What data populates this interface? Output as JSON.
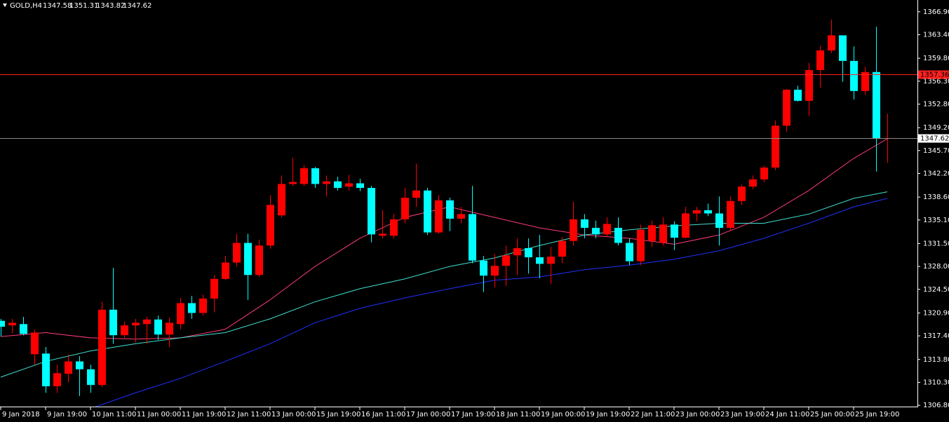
{
  "chart_data": {
    "type": "candlestick",
    "symbol": "GOLD,H4",
    "up_color": "#ff0000",
    "down_color": "#00ffff",
    "categories": [
      "9 Jan 2018",
      null,
      null,
      null,
      "9 Jan 19:00",
      null,
      null,
      null,
      "10 Jan 11:00",
      null,
      null,
      null,
      "11 Jan 00:00",
      null,
      null,
      null,
      "11 Jan 19:00",
      null,
      null,
      null,
      "12 Jan 11:00",
      null,
      null,
      null,
      "13 Jan 00:00",
      null,
      null,
      null,
      "15 Jan 19:00",
      null,
      null,
      null,
      "16 Jan 11:00",
      null,
      null,
      null,
      "17 Jan 00:00",
      null,
      null,
      null,
      "17 Jan 19:00",
      null,
      null,
      null,
      "18 Jan 11:00",
      null,
      null,
      null,
      "19 Jan 00:00",
      null,
      null,
      null,
      "19 Jan 19:00",
      null,
      null,
      null,
      "22 Jan 11:00",
      null,
      null,
      null,
      "23 Jan 00:00",
      null,
      null,
      null,
      "23 Jan 19:00",
      null,
      null,
      null,
      "24 Jan 11:00",
      null,
      null,
      null,
      "25 Jan 00:00",
      null,
      null,
      null,
      "25 Jan 19:00",
      null,
      null,
      null
    ],
    "open": [
      1319.7,
      1319.0,
      1319.2,
      1314.6,
      1314.7,
      1309.7,
      1311.6,
      1313.5,
      1312.3,
      1309.9,
      1321.4,
      1317.5,
      1319.0,
      1319.2,
      1319.9,
      1317.6,
      1319.2,
      1322.4,
      1320.9,
      1323.1,
      1326.1,
      1328.6,
      1331.6,
      1326.7,
      1331.2,
      1335.8,
      1340.6,
      1340.6,
      1343.0,
      1340.6,
      1341.0,
      1340.2,
      1340.7,
      1340.0,
      1332.7,
      1332.7,
      1335.2,
      1338.5,
      1339.6,
      1333.2,
      1338.1,
      1335.3,
      1336.0,
      1328.9,
      1326.6,
      1328.1,
      1329.7,
      1330.8,
      1329.4,
      1328.4,
      1329.5,
      1331.9,
      1335.2,
      1333.9,
      1332.9,
      1333.9,
      1331.6,
      1328.8,
      1331.9,
      1331.6,
      1334.4,
      1332.4,
      1336.1,
      1336.6,
      1336.1,
      1333.9,
      1338.0,
      1340.2,
      1341.3,
      1343.1,
      1349.5,
      1355.0,
      1353.3,
      1358.0,
      1361.0,
      1363.3,
      1359.4,
      1354.8,
      1357.7,
      1347.58
    ],
    "high": [
      1320.0,
      1320.0,
      1320.3,
      1318.4,
      1315.7,
      1313.0,
      1314.6,
      1314.3,
      1313.0,
      1322.6,
      1327.8,
      1319.6,
      1320.0,
      1320.3,
      1320.5,
      1320.2,
      1323.2,
      1323.5,
      1323.7,
      1326.7,
      1329.6,
      1333.0,
      1333.0,
      1332.1,
      1338.9,
      1341.9,
      1344.6,
      1343.5,
      1343.2,
      1341.9,
      1341.7,
      1342.0,
      1341.4,
      1340.3,
      1336.6,
      1336.0,
      1340.0,
      1343.7,
      1340.0,
      1338.9,
      1338.5,
      1337.1,
      1340.3,
      1329.6,
      1329.9,
      1331.2,
      1332.3,
      1332.3,
      1332.8,
      1331.0,
      1332.5,
      1337.9,
      1336.0,
      1335.0,
      1335.5,
      1335.5,
      1332.3,
      1334.4,
      1335.0,
      1335.5,
      1334.9,
      1337.1,
      1337.1,
      1337.6,
      1338.7,
      1338.7,
      1340.5,
      1341.9,
      1343.4,
      1350.3,
      1355.1,
      1355.6,
      1359.1,
      1361.7,
      1365.7,
      1363.3,
      1361.6,
      1358.5,
      1364.6,
      1351.31
    ],
    "low": [
      1317.3,
      1317.8,
      1317.5,
      1313.0,
      1308.7,
      1308.7,
      1310.3,
      1308.2,
      1308.7,
      1309.6,
      1316.2,
      1317.1,
      1316.4,
      1316.2,
      1316.8,
      1315.7,
      1318.4,
      1320.0,
      1320.5,
      1321.0,
      1325.9,
      1328.0,
      1322.9,
      1326.4,
      1330.7,
      1335.5,
      1340.3,
      1340.3,
      1340.0,
      1338.7,
      1339.6,
      1339.6,
      1339.5,
      1331.7,
      1332.3,
      1332.3,
      1334.6,
      1337.1,
      1332.8,
      1333.0,
      1333.4,
      1334.6,
      1328.5,
      1324.1,
      1324.8,
      1325.0,
      1326.7,
      1326.9,
      1326.2,
      1325.3,
      1328.5,
      1331.2,
      1332.3,
      1332.3,
      1332.5,
      1331.2,
      1328.2,
      1328.2,
      1331.0,
      1331.2,
      1330.5,
      1332.3,
      1334.9,
      1335.7,
      1331.2,
      1333.4,
      1337.4,
      1339.8,
      1340.9,
      1342.7,
      1348.6,
      1353.2,
      1351.0,
      1355.3,
      1360.6,
      1356.2,
      1353.5,
      1354.2,
      1342.5,
      1343.82
    ],
    "close": [
      1318.8,
      1319.4,
      1317.7,
      1317.9,
      1309.7,
      1311.7,
      1313.5,
      1312.3,
      1309.9,
      1321.4,
      1317.5,
      1319.0,
      1319.4,
      1319.9,
      1317.6,
      1319.4,
      1322.4,
      1320.9,
      1323.1,
      1326.1,
      1328.6,
      1331.6,
      1326.7,
      1331.2,
      1337.4,
      1340.6,
      1340.9,
      1343.0,
      1340.6,
      1341.0,
      1340.0,
      1340.7,
      1340.0,
      1332.9,
      1333.0,
      1335.2,
      1338.5,
      1339.6,
      1333.2,
      1338.1,
      1335.3,
      1336.0,
      1328.9,
      1326.6,
      1328.1,
      1329.7,
      1330.8,
      1329.4,
      1328.4,
      1329.5,
      1331.9,
      1335.2,
      1333.9,
      1332.9,
      1334.5,
      1331.6,
      1328.8,
      1333.6,
      1334.3,
      1334.4,
      1332.4,
      1336.1,
      1336.6,
      1336.1,
      1333.9,
      1338.0,
      1340.2,
      1341.3,
      1343.1,
      1349.5,
      1355.0,
      1353.3,
      1358.0,
      1361.0,
      1363.3,
      1359.4,
      1354.8,
      1357.7,
      1347.5,
      1347.62
    ],
    "series": [
      {
        "color": "#ff3c78",
        "x": [
          0,
          4,
          8,
          12,
          16,
          20,
          24,
          28,
          32,
          36,
          40,
          44,
          48,
          52,
          56,
          60,
          64,
          68,
          72,
          76,
          79
        ],
        "values": [
          1317.3,
          1317.9,
          1317.1,
          1316.9,
          1317.1,
          1318.4,
          1322.9,
          1328.0,
          1332.3,
          1335.5,
          1337.1,
          1335.5,
          1333.9,
          1332.8,
          1332.3,
          1331.4,
          1332.8,
          1335.5,
          1339.6,
          1344.5,
          1347.5
        ]
      },
      {
        "color": "#40e0d0",
        "x": [
          0,
          4,
          8,
          12,
          16,
          20,
          24,
          28,
          32,
          36,
          40,
          44,
          48,
          52,
          56,
          60,
          64,
          68,
          72,
          76,
          79
        ],
        "values": [
          1311.1,
          1313.5,
          1315.1,
          1316.2,
          1317.1,
          1317.9,
          1320.0,
          1322.6,
          1324.6,
          1326.1,
          1328.0,
          1329.3,
          1331.2,
          1332.8,
          1333.6,
          1334.2,
          1334.6,
          1334.6,
          1336.0,
          1338.4,
          1339.4
        ]
      },
      {
        "color": "#2030ff",
        "x": [
          0,
          4,
          8,
          12,
          16,
          20,
          24,
          28,
          32,
          36,
          40,
          44,
          48,
          52,
          56,
          60,
          64,
          68,
          72,
          76,
          79
        ],
        "values": [
          null,
          null,
          1306.3,
          1308.7,
          1310.9,
          1313.5,
          1316.2,
          1319.4,
          1321.6,
          1323.2,
          1324.6,
          1325.9,
          1326.4,
          1327.5,
          1328.2,
          1329.1,
          1330.4,
          1332.3,
          1334.6,
          1337.1,
          1338.4
        ]
      }
    ],
    "price_lines": [
      {
        "value": 1357.36,
        "color": "#ff2020",
        "label_color": "#ff2020",
        "text_color": "#000000"
      },
      {
        "value": 1347.62,
        "color": "#8a8a8a",
        "label_color": "#ffffff",
        "text_color": "#000000"
      }
    ],
    "ylim": [
      1306.6,
      1368.7
    ],
    "yticks": [
      {
        "value": 1366.9,
        "label": "1366.90"
      },
      {
        "value": 1363.4,
        "label": "1363.40"
      },
      {
        "value": 1359.8,
        "label": "1359.80"
      },
      {
        "value": 1356.3,
        "label": "1356.30"
      },
      {
        "value": 1352.8,
        "label": "1352.80"
      },
      {
        "value": 1349.2,
        "label": "1349.20"
      },
      {
        "value": 1345.7,
        "label": "1345.70"
      },
      {
        "value": 1342.2,
        "label": "1342.20"
      },
      {
        "value": 1338.6,
        "label": "1338.60"
      },
      {
        "value": 1335.1,
        "label": "1335.10"
      },
      {
        "value": 1331.5,
        "label": "1331.50"
      },
      {
        "value": 1328,
        "label": "1328.00"
      },
      {
        "value": 1324.5,
        "label": "1324.50"
      },
      {
        "value": 1320.9,
        "label": "1320.90"
      },
      {
        "value": 1317.4,
        "label": "1317.40"
      },
      {
        "value": 1313.8,
        "label": "1313.80"
      },
      {
        "value": 1310.3,
        "label": "1310.30"
      },
      {
        "value": 1306.8,
        "label": "1306.80"
      }
    ]
  }
}
